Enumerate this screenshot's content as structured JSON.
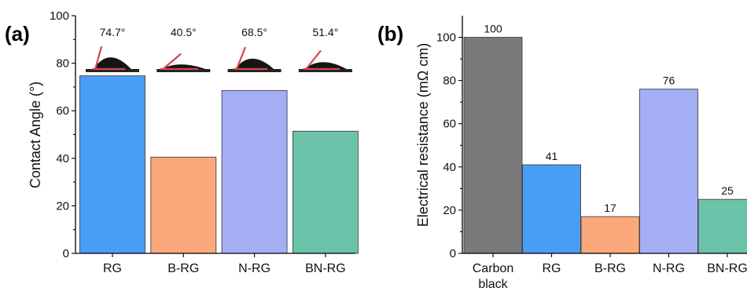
{
  "chart_data": [
    {
      "type": "bar",
      "panel_label": "(a)",
      "ylabel": "Contact Angle (°)",
      "xlabel": "",
      "categories": [
        "RG",
        "B-RG",
        "N-RG",
        "BN-RG"
      ],
      "values": [
        74.7,
        40.5,
        68.5,
        51.4
      ],
      "data_labels": [
        "74.7°",
        "40.5°",
        "68.5°",
        "51.4°"
      ],
      "ylim": [
        0,
        100
      ],
      "yticks": [
        "0",
        "20",
        "40",
        "60",
        "80",
        "100"
      ],
      "colors": [
        "#4a9df5",
        "#fba97a",
        "#a3aef5",
        "#6dc2aa"
      ],
      "droplet_images": true,
      "grid": false
    },
    {
      "type": "bar",
      "panel_label": "(b)",
      "ylabel": "Electrical resistance (mΩ cm)",
      "xlabel": "",
      "categories": [
        "Carbon black",
        "RG",
        "B-RG",
        "N-RG",
        "BN-RG"
      ],
      "values": [
        100,
        41,
        17,
        76,
        25
      ],
      "data_labels": [
        "100",
        "41",
        "17",
        "76",
        "25"
      ],
      "ylim": [
        0,
        110
      ],
      "yticks": [
        "0",
        "20",
        "40",
        "60",
        "80",
        "100"
      ],
      "colors": [
        "#7a7a7a",
        "#4a9df5",
        "#fba97a",
        "#a3aef5",
        "#6dc2aa"
      ],
      "grid": false
    }
  ]
}
